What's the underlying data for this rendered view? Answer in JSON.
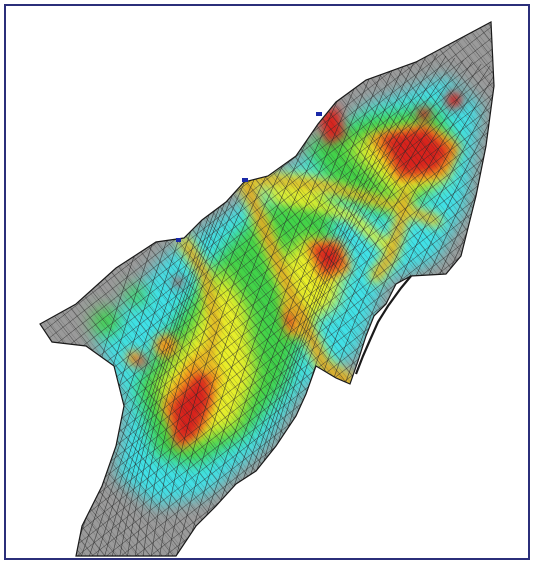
{
  "viewport": {
    "frame_color": "#2b2f7a",
    "background_color": "#ffffff"
  },
  "mesh": {
    "base_fill": "#9a9a9a",
    "grid_line_color": "#2a2a2a",
    "shoreline_color": "#1a1a1a",
    "legend": []
  },
  "contour_colors": {
    "low": "#3fe0e6",
    "mid_low": "#37c8a0",
    "mid": "#3fd24a",
    "mid_high": "#e8ee2a",
    "high": "#f39a1c",
    "peak": "#d8231e"
  }
}
